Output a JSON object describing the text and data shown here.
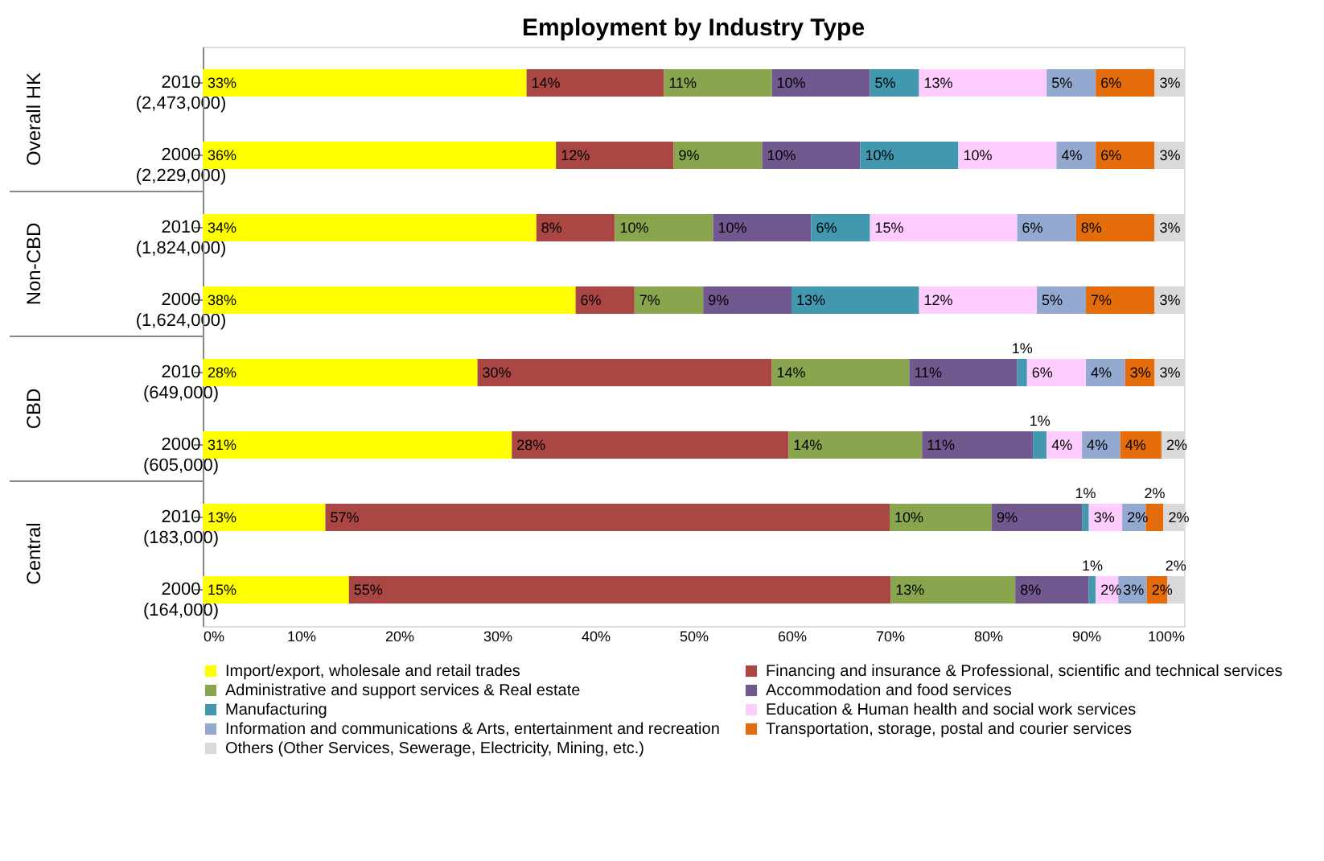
{
  "chart_data": {
    "type": "bar",
    "title": "Employment by Industry Type",
    "orientation": "horizontal",
    "stacked": true,
    "categories": [
      "2010 (2,473,000)",
      "2000 (2,229,000)",
      "2010 (1,824,000)",
      "2000 (1,624,000)",
      "2010 (649,000)",
      "2000 (605,000)",
      "2010 (183,000)",
      "2000 (164,000)"
    ],
    "annotations": [
      "Overall HK",
      "Non-CBD",
      "CBD",
      "Central"
    ],
    "xlim": [
      0,
      100
    ],
    "xticks": [
      {
        "value": 0,
        "label": "0%"
      },
      {
        "value": 10,
        "label": "10%"
      },
      {
        "value": 20,
        "label": "20%"
      },
      {
        "value": 30,
        "label": "30%"
      },
      {
        "value": 40,
        "label": "40%"
      },
      {
        "value": 50,
        "label": "50%"
      },
      {
        "value": 60,
        "label": "60%"
      },
      {
        "value": 70,
        "label": "70%"
      },
      {
        "value": 80,
        "label": "80%"
      },
      {
        "value": 90,
        "label": "90%"
      },
      {
        "value": 100,
        "label": "100%"
      }
    ],
    "legend": "bottom",
    "grid": false,
    "series": [
      {
        "name": "Import/export, wholesale and retail trades",
        "color": "#ffff00",
        "values": [
          33,
          36,
          34,
          38,
          28,
          31.5,
          12.5,
          14.9
        ],
        "value_labels": [
          "33%",
          "36%",
          "34%",
          "38%",
          "28%",
          "31%",
          "13%",
          "15%"
        ]
      },
      {
        "name": "Financing and insurance & Professional, scientific and technical services",
        "color": "#aa4643",
        "values": [
          14,
          12,
          8,
          6,
          30,
          28.2,
          57.5,
          55.2
        ],
        "value_labels": [
          "14%",
          "12%",
          "8%",
          "6%",
          "30%",
          "28%",
          "57%",
          "55%"
        ]
      },
      {
        "name": "Administrative and support  services & Real estate",
        "color": "#89a54e",
        "values": [
          11,
          9,
          10,
          7,
          14,
          13.6,
          10.4,
          12.7
        ],
        "value_labels": [
          "11%",
          "9%",
          "10%",
          "7%",
          "14%",
          "14%",
          "10%",
          "13%"
        ]
      },
      {
        "name": "Accommodation and food services",
        "color": "#71588f",
        "values": [
          10,
          10,
          10,
          9,
          11,
          11.3,
          9.2,
          7.5
        ],
        "value_labels": [
          "10%",
          "10%",
          "10%",
          "9%",
          "11%",
          "11%",
          "9%",
          "8%"
        ]
      },
      {
        "name": "Manufacturing",
        "color": "#4198af",
        "values": [
          5,
          10,
          6,
          13,
          1,
          1.4,
          0.7,
          0.7
        ],
        "value_labels": [
          "5%",
          "10%",
          "6%",
          "13%",
          "1%",
          "1%",
          "1%",
          "1%"
        ]
      },
      {
        "name": "Education & Human health and social work services",
        "color": "#ffccff",
        "values": [
          13,
          10,
          15,
          12,
          6,
          3.6,
          3.4,
          2.3
        ],
        "value_labels": [
          "13%",
          "10%",
          "15%",
          "12%",
          "6%",
          "4%",
          "3%",
          "2%"
        ]
      },
      {
        "name": "Information and communications & Arts, entertainment and recreation",
        "color": "#93a9cf",
        "values": [
          5,
          4,
          6,
          5,
          4,
          3.9,
          2.4,
          2.9
        ],
        "value_labels": [
          "5%",
          "4%",
          "6%",
          "5%",
          "4%",
          "4%",
          "2%",
          "3%"
        ]
      },
      {
        "name": "Transportation, storage, postal and courier services",
        "color": "#e46c0a",
        "values": [
          6,
          6,
          8,
          7,
          3,
          4.2,
          1.8,
          2.1
        ],
        "value_labels": [
          "6%",
          "6%",
          "8%",
          "7%",
          "3%",
          "4%",
          "2%",
          "2%"
        ]
      },
      {
        "name": "Others (Other Services, Sewerage, Electricity, Mining, etc.)",
        "color": "#d9d9d9",
        "values": [
          3,
          3,
          3,
          3,
          3,
          2.3,
          2.1,
          1.7
        ],
        "value_labels": [
          "3%",
          "3%",
          "3%",
          "3%",
          "3%",
          "2%",
          "2%",
          "2%"
        ]
      }
    ]
  }
}
